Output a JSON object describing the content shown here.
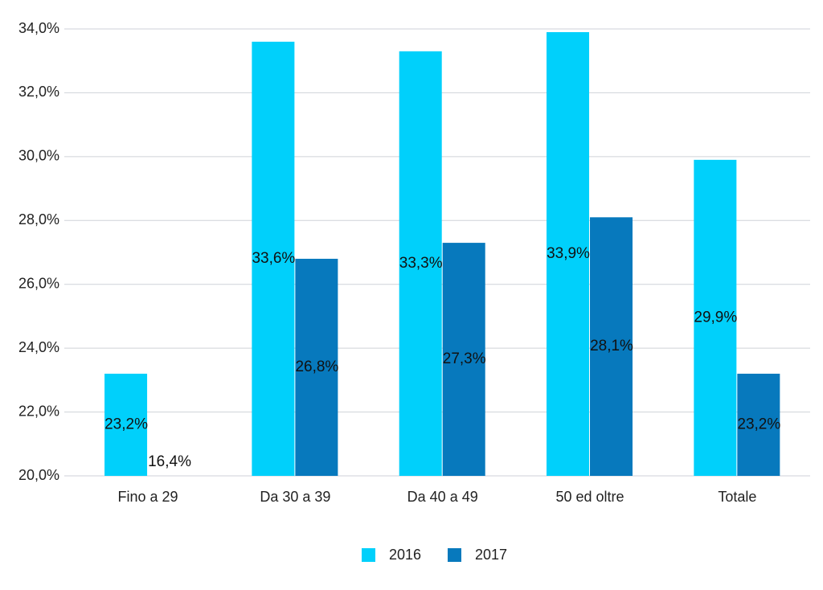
{
  "chart_data": {
    "type": "bar",
    "categories": [
      "Fino a 29",
      "Da 30 a 39",
      "Da 40 a 49",
      "50 ed oltre",
      "Totale"
    ],
    "series": [
      {
        "name": "2016",
        "color": "#00d0fb",
        "values": [
          23.2,
          33.6,
          33.3,
          33.9,
          29.9
        ],
        "value_labels": [
          "23,2%",
          "33,6%",
          "33,3%",
          "33,9%",
          "29,9%"
        ]
      },
      {
        "name": "2017",
        "color": "#0779bd",
        "values": [
          16.4,
          26.8,
          27.3,
          28.1,
          23.2
        ],
        "value_labels": [
          "16,4%",
          "26,8%",
          "27,3%",
          "28,1%",
          "23,2%"
        ]
      }
    ],
    "ylim": [
      20,
      34
    ],
    "yticks": [
      {
        "value": 20,
        "label": "20,0%"
      },
      {
        "value": 22,
        "label": "22,0%"
      },
      {
        "value": 24,
        "label": "24,0%"
      },
      {
        "value": 26,
        "label": "26,0%"
      },
      {
        "value": 28,
        "label": "28,0%"
      },
      {
        "value": 30,
        "label": "30,0%"
      },
      {
        "value": 32,
        "label": "32,0%"
      },
      {
        "value": 34,
        "label": "34,0%"
      }
    ],
    "grid": true,
    "legend": "bottom"
  }
}
